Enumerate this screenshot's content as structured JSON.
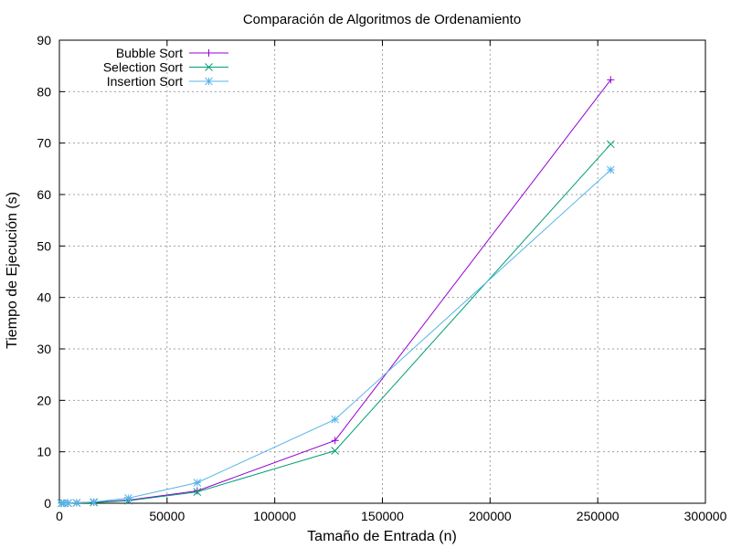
{
  "chart_data": {
    "type": "line",
    "title": "Comparación de Algoritmos de Ordenamiento",
    "xlabel": "Tamaño de Entrada (n)",
    "ylabel": "Tiempo de Ejecución (s)",
    "xlim": [
      0,
      300000
    ],
    "ylim": [
      0,
      90
    ],
    "xticks": [
      0,
      50000,
      100000,
      150000,
      200000,
      250000,
      300000
    ],
    "yticks": [
      0,
      10,
      20,
      30,
      40,
      50,
      60,
      70,
      80,
      90
    ],
    "grid": true,
    "legend_position": "top-left",
    "series": [
      {
        "name": "Bubble Sort",
        "color": "#9400d3",
        "marker": "plus",
        "points": [
          [
            1000,
            0.0
          ],
          [
            2000,
            0.01
          ],
          [
            4000,
            0.03
          ],
          [
            8000,
            0.1
          ],
          [
            16000,
            0.2
          ],
          [
            32000,
            0.6
          ],
          [
            64000,
            2.4
          ],
          [
            128000,
            12.2
          ],
          [
            256000,
            82.3
          ]
        ]
      },
      {
        "name": "Selection Sort",
        "color": "#009e73",
        "marker": "cross",
        "points": [
          [
            1000,
            0.0
          ],
          [
            2000,
            0.01
          ],
          [
            4000,
            0.02
          ],
          [
            8000,
            0.06
          ],
          [
            16000,
            0.15
          ],
          [
            32000,
            0.5
          ],
          [
            64000,
            2.2
          ],
          [
            128000,
            10.2
          ],
          [
            256000,
            69.8
          ]
        ]
      },
      {
        "name": "Insertion Sort",
        "color": "#56b4e9",
        "marker": "star",
        "points": [
          [
            1000,
            0.0
          ],
          [
            2000,
            0.01
          ],
          [
            4000,
            0.03
          ],
          [
            8000,
            0.08
          ],
          [
            16000,
            0.25
          ],
          [
            32000,
            1.0
          ],
          [
            64000,
            4.0
          ],
          [
            128000,
            16.3
          ],
          [
            256000,
            64.8
          ]
        ]
      }
    ]
  }
}
